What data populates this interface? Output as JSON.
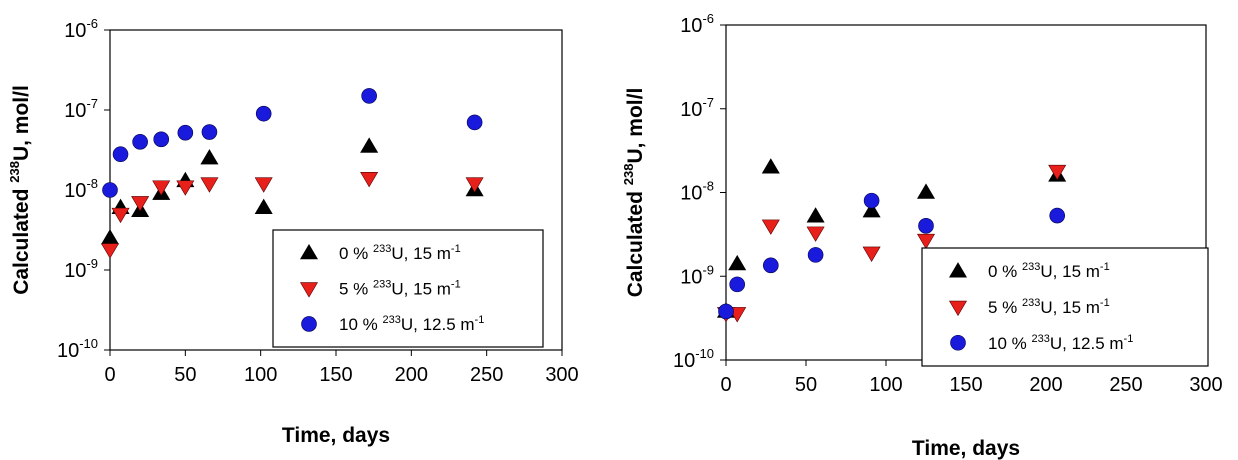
{
  "chart_data": [
    {
      "type": "scatter",
      "xlabel": "Time, days",
      "ylabel": {
        "prefix": "Calculated ",
        "sup": "238",
        "suffix": "U, mol/l"
      },
      "xlim": [
        0,
        300
      ],
      "ylim": [
        1e-10,
        1e-06
      ],
      "yscale": "log",
      "xticks": [
        "0",
        "50",
        "100",
        "150",
        "200",
        "250",
        "300"
      ],
      "yticks": [
        {
          "base": "10",
          "exp": "-10"
        },
        {
          "base": "10",
          "exp": "-9"
        },
        {
          "base": "10",
          "exp": "-8"
        },
        {
          "base": "10",
          "exp": "-7"
        },
        {
          "base": "10",
          "exp": "-6"
        }
      ],
      "legend_position": "bottom-right",
      "series": [
        {
          "marker": "triangle-up",
          "color": "#000000",
          "label": {
            "pre": "0 % ",
            "sup": "233",
            "mid": "U, 15 m",
            "sup2": "-1"
          },
          "x": [
            0,
            7,
            20,
            34,
            50,
            66,
            102,
            172,
            242
          ],
          "y": [
            2.5e-09,
            6e-09,
            5.5e-09,
            9e-09,
            1.3e-08,
            2.5e-08,
            6e-09,
            3.5e-08,
            1e-08
          ]
        },
        {
          "marker": "triangle-down",
          "color": "#e8201c",
          "label": {
            "pre": "5 % ",
            "sup": "233",
            "mid": "U, 15 m",
            "sup2": "-1"
          },
          "x": [
            0,
            7,
            20,
            34,
            50,
            66,
            102,
            172,
            242
          ],
          "y": [
            1.8e-09,
            5e-09,
            7e-09,
            1.1e-08,
            1.1e-08,
            1.2e-08,
            1.2e-08,
            1.4e-08,
            1.2e-08
          ]
        },
        {
          "marker": "circle",
          "color": "#1a1adc",
          "label": {
            "pre": "10 % ",
            "sup": "233",
            "mid": "U, 12.5 m",
            "sup2": "-1"
          },
          "x": [
            0,
            7,
            20,
            34,
            50,
            66,
            102,
            172,
            242
          ],
          "y": [
            1e-08,
            2.8e-08,
            4e-08,
            4.3e-08,
            5.2e-08,
            5.3e-08,
            9e-08,
            1.5e-07,
            7e-08
          ]
        }
      ]
    },
    {
      "type": "scatter",
      "xlabel": "Time, days",
      "ylabel": {
        "prefix": "Calculated ",
        "sup": "238",
        "suffix": "U, mol/l"
      },
      "xlim": [
        0,
        300
      ],
      "ylim": [
        1e-10,
        1e-06
      ],
      "yscale": "log",
      "xticks": [
        "0",
        "50",
        "100",
        "150",
        "200",
        "250",
        "300"
      ],
      "yticks": [
        {
          "base": "10",
          "exp": "-10"
        },
        {
          "base": "10",
          "exp": "-9"
        },
        {
          "base": "10",
          "exp": "-8"
        },
        {
          "base": "10",
          "exp": "-7"
        },
        {
          "base": "10",
          "exp": "-6"
        }
      ],
      "legend_position": "bottom-right",
      "series": [
        {
          "marker": "triangle-up",
          "color": "#000000",
          "label": {
            "pre": "0 % ",
            "sup": "233",
            "mid": "U, 15 m",
            "sup2": "-1"
          },
          "x": [
            0,
            7,
            28,
            56,
            91,
            125,
            207
          ],
          "y": [
            3.8e-10,
            1.4e-09,
            2e-08,
            5.2e-09,
            6e-09,
            1e-08,
            1.6e-08
          ]
        },
        {
          "marker": "triangle-down",
          "color": "#e8201c",
          "label": {
            "pre": "5 % ",
            "sup": "233",
            "mid": "U, 15 m",
            "sup2": "-1"
          },
          "x": [
            0,
            7,
            28,
            56,
            91,
            125,
            207
          ],
          "y": [
            3.6e-10,
            3.6e-10,
            4e-09,
            3.3e-09,
            1.9e-09,
            2.7e-09,
            1.8e-08
          ]
        },
        {
          "marker": "circle",
          "color": "#1a1adc",
          "label": {
            "pre": "10 % ",
            "sup": "233",
            "mid": "U, 12.5 m",
            "sup2": "-1"
          },
          "x": [
            0,
            7,
            28,
            56,
            91,
            125,
            207
          ],
          "y": [
            3.8e-10,
            8e-10,
            1.35e-09,
            1.8e-09,
            8e-09,
            4e-09,
            5.3e-09
          ]
        }
      ]
    }
  ]
}
